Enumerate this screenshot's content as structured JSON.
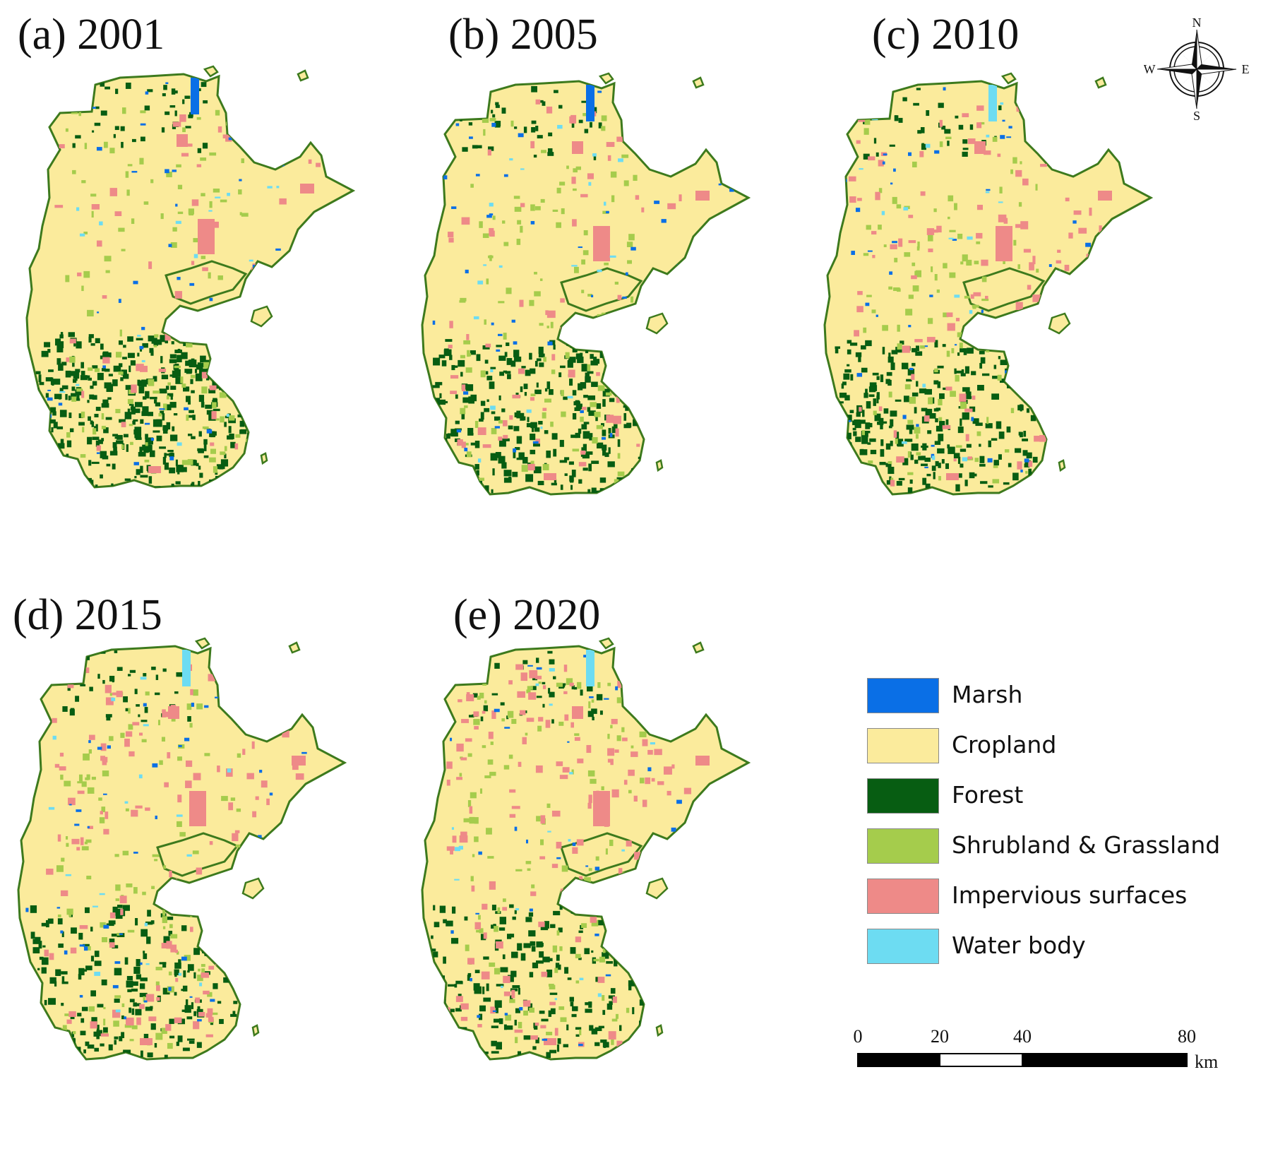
{
  "panels": [
    {
      "label": "(a) 2001"
    },
    {
      "label": "(b) 2005"
    },
    {
      "label": "(c) 2010"
    },
    {
      "label": "(d) 2015"
    },
    {
      "label": "(e) 2020"
    }
  ],
  "legend": {
    "items": [
      {
        "label": "Marsh",
        "color": "#0a6fe6"
      },
      {
        "label": "Cropland",
        "color": "#fbeb9c"
      },
      {
        "label": "Forest",
        "color": "#075d12"
      },
      {
        "label": "Shrubland & Grassland",
        "color": "#a5cc4c"
      },
      {
        "label": "Impervious surfaces",
        "color": "#ee8a88"
      },
      {
        "label": "Water body",
        "color": "#6ddcf2"
      }
    ]
  },
  "scale_bar": {
    "ticks": [
      "0",
      "20",
      "40",
      "80"
    ],
    "unit": "km"
  },
  "compass": {
    "north": "N",
    "south": "S",
    "east": "E",
    "west": "W"
  },
  "colors": {
    "outline": "#3d7a1d",
    "cropland": "#fbeb9c"
  }
}
